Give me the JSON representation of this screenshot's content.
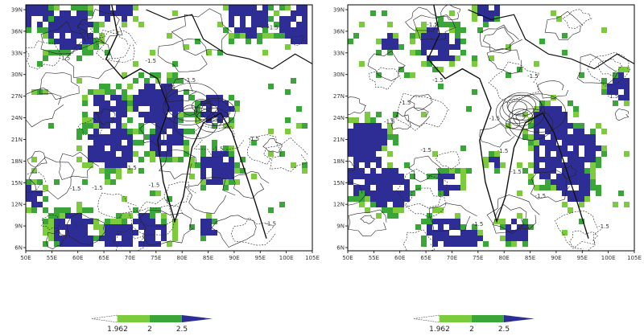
{
  "colors": {
    "light_green": "#7ccb3d",
    "green": "#3aa63a",
    "blue": "#2e2d96",
    "contour": "#222222",
    "coast": "#111111"
  },
  "axes": {
    "lat_ticks": [
      "39N",
      "36N",
      "33N",
      "30N",
      "27N",
      "24N",
      "21N",
      "18N",
      "15N",
      "12N",
      "9N",
      "6N"
    ],
    "lon_ticks": [
      "50E",
      "55E",
      "60E",
      "65E",
      "70E",
      "75E",
      "80E",
      "85E",
      "90E",
      "95E",
      "100E",
      "105E"
    ]
  },
  "colorbar": {
    "labels": [
      "1.962",
      "2",
      "2.5"
    ]
  },
  "panels": [
    {
      "contour_label": "-1.5"
    },
    {
      "contour_label": "-1.5"
    }
  ]
}
